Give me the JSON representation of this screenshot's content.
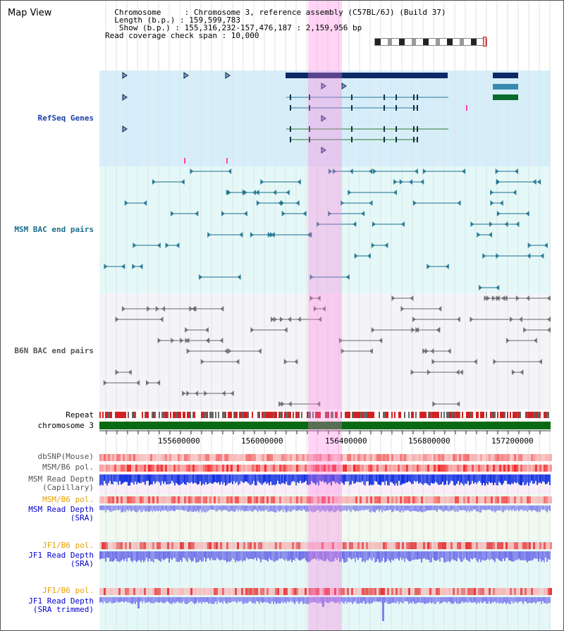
{
  "title": "Map View",
  "header": {
    "lines": [
      "  Chromosome     : Chromosome 3, reference assembly (C57BL/6J) (Build 37)",
      "  Length (b.p.) : 159,599,783",
      "   Show (b.p.) : 155,316,232-157,476,187 : 2,159,956 bp",
      "Read coverage check span : 10,000"
    ]
  },
  "tracks": {
    "refseq": {
      "label": "RefSeq Genes",
      "color": "#1e3fa8"
    },
    "msm_bac": {
      "label": "MSM BAC end pairs",
      "color": "#1a6e8c"
    },
    "b6n_bac": {
      "label": "B6N BAC end pairs",
      "color": "#555555"
    },
    "repeat": {
      "label": "Repeat"
    },
    "chromosome": {
      "label": "chromosome 3"
    },
    "axis_ticks": [
      "155600000",
      "156000000",
      "156400000",
      "156800000",
      "157200000"
    ],
    "dbsnp": {
      "label": "dbSNP(Mouse)"
    },
    "msm_b6_pol": {
      "label": "MSM/B6 pol."
    },
    "msm_depth_cap": {
      "label1": "MSM Read Depth",
      "label2": "(Capillary)"
    },
    "msm_b6_pol_sra": {
      "label": "MSM/B6 pol.",
      "color": "#e8a000"
    },
    "msm_depth_sra": {
      "label1": "MSM Read Depth",
      "label2": "(SRA)",
      "color": "#0000cc"
    },
    "jf1_b6_pol": {
      "label": "JF1/B6 pol.",
      "color": "#e8a000"
    },
    "jf1_depth_sra": {
      "label1": "JF1 Read Depth",
      "label2": "(SRA)",
      "color": "#0000cc"
    },
    "jf1_b6_pol2": {
      "label": "JF1/B6 pol.",
      "color": "#e8a000"
    },
    "jf1_depth_trim": {
      "label1": "JF1 Read Depth",
      "label2": "(SRA trimmed)",
      "color": "#0000cc"
    }
  }
}
